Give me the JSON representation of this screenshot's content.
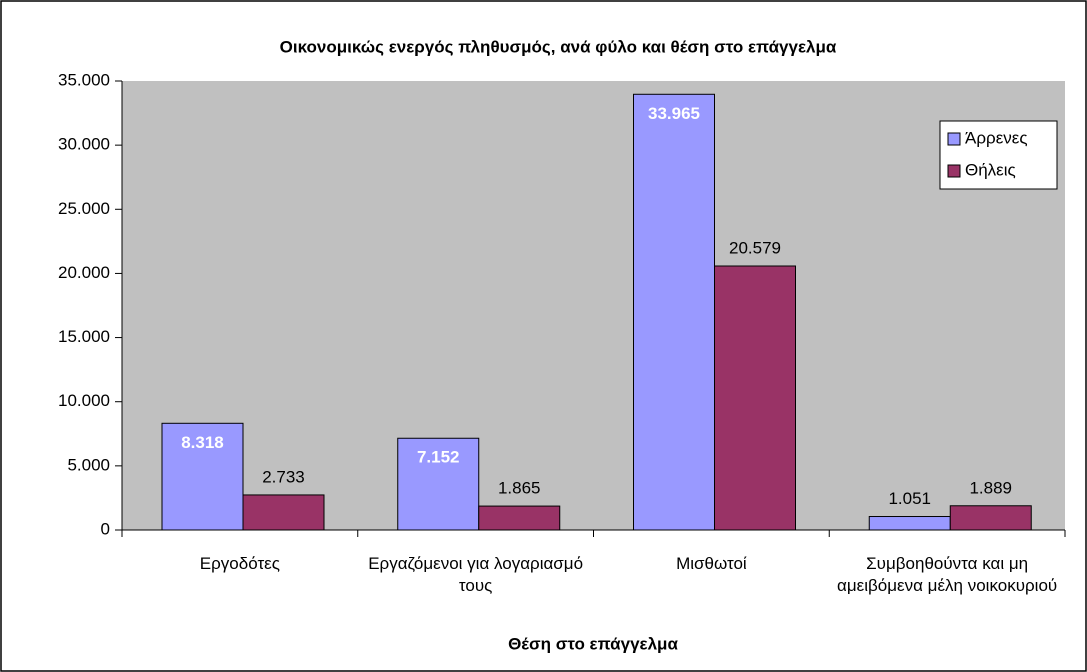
{
  "chart_data": {
    "type": "bar",
    "title": "Οικονομικώς ενεργός πληθυσμός, ανά φύλο και θέση στο επάγγελμα",
    "x_label": "Θέση στο επάγγελμα",
    "categories": [
      "Εργοδότες",
      "Εργαζόμενοι για λογαριασμό τους",
      "Μισθωτοί",
      "Συμβοηθούντα και μη αμειβόμενα μέλη νοικοκυριού"
    ],
    "series": [
      {
        "name": "Άρρενες",
        "color": "#9999ff",
        "values": [
          8318,
          7152,
          33965,
          1051
        ],
        "value_labels": [
          "8.318",
          "7.152",
          "33.965",
          "1.051"
        ]
      },
      {
        "name": "Θήλεις",
        "color": "#993366",
        "values": [
          2733,
          1865,
          20579,
          1889
        ],
        "value_labels": [
          "2.733",
          "1.865",
          "20.579",
          "1.889"
        ]
      }
    ],
    "ylim": [
      0,
      35000
    ],
    "yticks": [
      {
        "value": 0,
        "label": "0"
      },
      {
        "value": 5000,
        "label": "5.000"
      },
      {
        "value": 10000,
        "label": "10.000"
      },
      {
        "value": 15000,
        "label": "15.000"
      },
      {
        "value": 20000,
        "label": "20.000"
      },
      {
        "value": 25000,
        "label": "25.000"
      },
      {
        "value": 30000,
        "label": "30.000"
      },
      {
        "value": 35000,
        "label": "35.000"
      }
    ],
    "legend": "top-right"
  }
}
